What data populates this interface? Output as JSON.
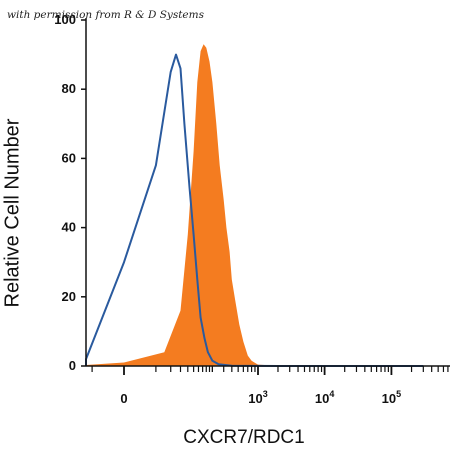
{
  "watermark": "with permission from R & D Systems",
  "chart_data": {
    "type": "area",
    "xlabel": "CXCR7/RDC1",
    "ylabel": "Relative Cell Number",
    "ylim": [
      0,
      100
    ],
    "xscale": "biexponential (logicle)",
    "grid": false,
    "legend": "none",
    "y_ticks": [
      "0",
      "20",
      "40",
      "60",
      "80",
      "100"
    ],
    "x_ticks": [
      {
        "base": "0",
        "exp": ""
      },
      {
        "base": "10",
        "exp": "3"
      },
      {
        "base": "10",
        "exp": "4"
      },
      {
        "base": "10",
        "exp": "5"
      }
    ],
    "series": [
      {
        "style": "filled",
        "color": "#f47c20",
        "points": [
          [
            -200,
            0
          ],
          [
            -50,
            0.3
          ],
          [
            0,
            1
          ],
          [
            30,
            4
          ],
          [
            60,
            16
          ],
          [
            80,
            38
          ],
          [
            100,
            62
          ],
          [
            115,
            82
          ],
          [
            130,
            91
          ],
          [
            145,
            93
          ],
          [
            160,
            92
          ],
          [
            180,
            88
          ],
          [
            200,
            82
          ],
          [
            230,
            70
          ],
          [
            260,
            58
          ],
          [
            300,
            48
          ],
          [
            330,
            40
          ],
          [
            370,
            33
          ],
          [
            400,
            25
          ],
          [
            450,
            19
          ],
          [
            520,
            12
          ],
          [
            600,
            7
          ],
          [
            700,
            3
          ],
          [
            800,
            1.5
          ],
          [
            1000,
            0.4
          ],
          [
            2000,
            0.1
          ],
          [
            100000,
            0
          ],
          [
            300000,
            0
          ]
        ]
      },
      {
        "style": "outline",
        "color": "#2a5a9e",
        "points": [
          [
            -200,
            0
          ],
          [
            -80,
            0.2
          ],
          [
            -30,
            2
          ],
          [
            0,
            30
          ],
          [
            20,
            58
          ],
          [
            40,
            85
          ],
          [
            50,
            90
          ],
          [
            60,
            86
          ],
          [
            70,
            70
          ],
          [
            85,
            52
          ],
          [
            100,
            38
          ],
          [
            115,
            25
          ],
          [
            130,
            14
          ],
          [
            150,
            8
          ],
          [
            170,
            4
          ],
          [
            200,
            1.5
          ],
          [
            250,
            0.5
          ],
          [
            400,
            0.1
          ],
          [
            2000,
            0
          ],
          [
            300000,
            0
          ]
        ]
      }
    ]
  }
}
